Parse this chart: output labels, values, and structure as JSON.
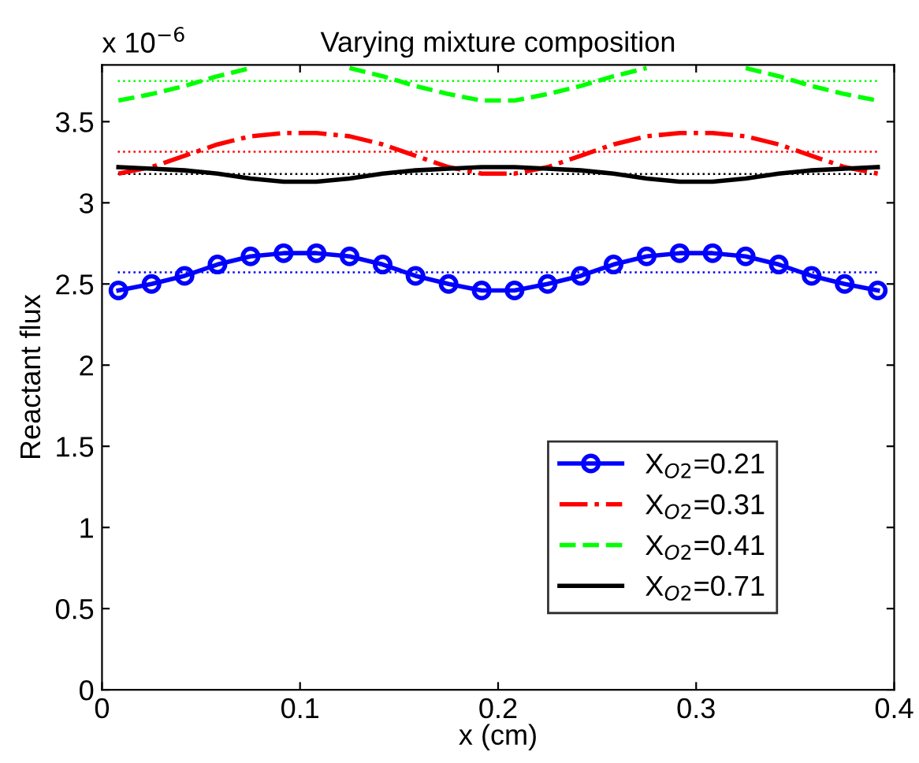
{
  "chart_data": {
    "type": "line",
    "title": "Varying mixture composition",
    "xlabel": "x (cm)",
    "ylabel": "Reactant flux",
    "annotations": [
      "x 10$^{−6}$"
    ],
    "x": [
      0.0083,
      0.025,
      0.0417,
      0.0583,
      0.075,
      0.0917,
      0.1083,
      0.125,
      0.1417,
      0.1583,
      0.175,
      0.1917,
      0.2083,
      0.225,
      0.2417,
      0.2583,
      0.275,
      0.2917,
      0.3083,
      0.325,
      0.3417,
      0.3583,
      0.375,
      0.3917
    ],
    "series": [
      {
        "name": "X$_{O2}$=0.21",
        "color": "#0000ff",
        "marker": "circle",
        "line_style": "solid",
        "values": [
          2.46,
          2.5,
          2.55,
          2.62,
          2.67,
          2.69,
          2.69,
          2.67,
          2.62,
          2.55,
          2.5,
          2.46,
          2.46,
          2.5,
          2.55,
          2.62,
          2.67,
          2.69,
          2.69,
          2.67,
          2.62,
          2.55,
          2.5,
          2.46
        ]
      },
      {
        "name": "X$_{O2}$=0.31",
        "color": "#ff0000",
        "marker": "none",
        "line_style": "dashdot",
        "values": [
          3.18,
          3.22,
          3.29,
          3.36,
          3.41,
          3.43,
          3.43,
          3.41,
          3.36,
          3.29,
          3.22,
          3.18,
          3.18,
          3.22,
          3.29,
          3.36,
          3.41,
          3.43,
          3.43,
          3.41,
          3.36,
          3.29,
          3.22,
          3.18
        ]
      },
      {
        "name": "X$_{O2}$=0.41",
        "color": "#00ff00",
        "marker": "none",
        "line_style": "dashed",
        "values": [
          3.63,
          3.67,
          3.72,
          3.78,
          3.83,
          null,
          null,
          3.83,
          3.78,
          3.72,
          3.67,
          3.63,
          3.63,
          3.67,
          3.72,
          3.78,
          3.83,
          null,
          null,
          3.83,
          3.78,
          3.72,
          3.67,
          3.63
        ]
      },
      {
        "name": "X$_{O2}$=0.71",
        "color": "#000000",
        "marker": "none",
        "line_style": "solid",
        "values": [
          3.22,
          3.21,
          3.2,
          3.18,
          3.15,
          3.13,
          3.13,
          3.15,
          3.18,
          3.2,
          3.21,
          3.22,
          3.22,
          3.21,
          3.2,
          3.18,
          3.15,
          3.13,
          3.13,
          3.15,
          3.18,
          3.2,
          3.21,
          3.22
        ]
      }
    ],
    "ref_lines": [
      {
        "axis": "y",
        "value": 2.572,
        "color": "#0000ff",
        "line_style": "dotted"
      },
      {
        "axis": "y",
        "value": 3.315,
        "color": "#ff0000",
        "line_style": "dotted"
      },
      {
        "axis": "y",
        "value": 3.75,
        "color": "#00ff00",
        "line_style": "dotted"
      },
      {
        "axis": "y",
        "value": 3.178,
        "color": "#000000",
        "line_style": "dotted"
      }
    ],
    "xlim": [
      0,
      0.4
    ],
    "xticks": [
      0,
      0.1,
      0.2,
      0.3,
      0.4
    ],
    "ylim": [
      0,
      3.85
    ],
    "yticks": [
      0,
      0.5,
      1,
      1.5,
      2,
      2.5,
      3,
      3.5
    ],
    "grid": false,
    "legend": "bottom right"
  }
}
